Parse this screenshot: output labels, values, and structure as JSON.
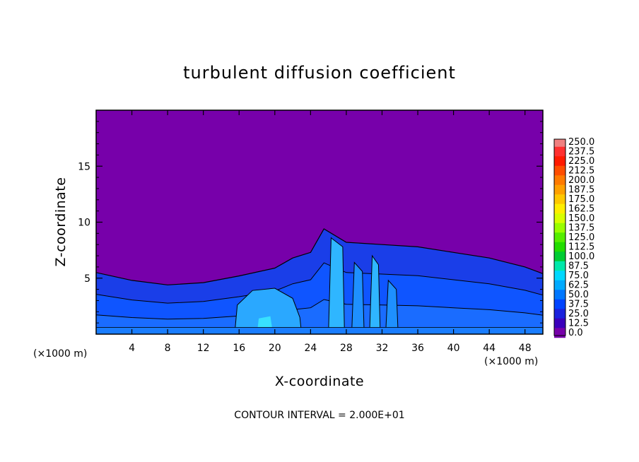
{
  "chart_data": {
    "type": "heatmap",
    "title": "turbulent diffusion coefficient",
    "xlabel": "X-coordinate",
    "ylabel": "Z-coordinate",
    "x_unit_left": "(×1000 m)",
    "x_unit_right": "(×1000 m)",
    "xlim": [
      0,
      50
    ],
    "ylim": [
      0,
      20
    ],
    "x_ticks": [
      "4",
      "8",
      "12",
      "16",
      "20",
      "24",
      "28",
      "32",
      "36",
      "40",
      "44",
      "48"
    ],
    "y_ticks": [
      "5",
      "10",
      "15"
    ],
    "colorbar": {
      "labels": [
        "250.0",
        "237.5",
        "225.0",
        "212.5",
        "200.0",
        "187.5",
        "175.0",
        "162.5",
        "150.0",
        "137.5",
        "125.0",
        "112.5",
        "100.0",
        "87.5",
        "75.0",
        "62.5",
        "50.0",
        "37.5",
        "25.0",
        "12.5",
        "0.0"
      ],
      "colors": [
        "#f08080",
        "#ff3030",
        "#ff1a00",
        "#ff4d00",
        "#ff7a00",
        "#ffa000",
        "#ffc800",
        "#ffee00",
        "#d8ff00",
        "#99ff00",
        "#55ee00",
        "#22dd00",
        "#00cc33",
        "#00e8aa",
        "#00d8ff",
        "#00aaff",
        "#0077ff",
        "#0044ff",
        "#1a22dd",
        "#3a00bb",
        "#7700aa"
      ]
    },
    "field": {
      "background_value": 0,
      "turbulent_layer_top": [
        [
          0,
          5.5
        ],
        [
          4,
          4.8
        ],
        [
          8,
          4.4
        ],
        [
          12,
          4.6
        ],
        [
          16,
          5.2
        ],
        [
          20,
          5.9
        ],
        [
          22,
          6.8
        ],
        [
          24,
          7.3
        ],
        [
          25.5,
          9.4
        ],
        [
          28,
          8.2
        ],
        [
          32,
          8.0
        ],
        [
          36,
          7.8
        ],
        [
          40,
          7.3
        ],
        [
          44,
          6.8
        ],
        [
          48,
          6.0
        ],
        [
          50,
          5.4
        ]
      ],
      "typical_layer_value": 30,
      "peak_value_approx": 75
    },
    "footnote": "CONTOUR INTERVAL = 2.000E+01"
  }
}
